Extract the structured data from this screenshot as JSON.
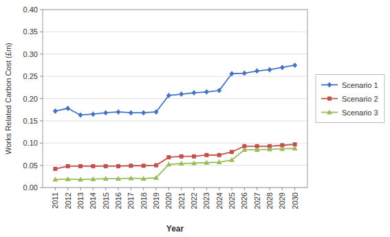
{
  "chart_data": {
    "type": "line",
    "xlabel": "Year",
    "ylabel": "Works Related Carbon Cost (£m)",
    "x": [
      2011,
      2012,
      2013,
      2014,
      2015,
      2016,
      2017,
      2018,
      2019,
      2020,
      2021,
      2022,
      2023,
      2024,
      2025,
      2026,
      2027,
      2028,
      2029,
      2030
    ],
    "xlim": [
      2010,
      2031
    ],
    "xticks": [
      2011,
      2012,
      2013,
      2014,
      2015,
      2016,
      2017,
      2018,
      2019,
      2020,
      2021,
      2022,
      2023,
      2024,
      2025,
      2026,
      2027,
      2028,
      2029,
      2030
    ],
    "ylim": [
      0.0,
      0.4
    ],
    "yticks": [
      {
        "value": 0.0,
        "label": "0.00"
      },
      0.05,
      {
        "value": 0.1,
        "label": "0.10"
      },
      0.15,
      {
        "value": 0.2,
        "label": "0.20"
      },
      0.25,
      {
        "value": 0.3,
        "label": "0.30"
      },
      0.35,
      {
        "value": 0.4,
        "label": "0.40"
      }
    ],
    "grid": true,
    "legend": "right",
    "series": [
      {
        "name": "Scenario 1",
        "color": "#4472C4",
        "marker": "diamond",
        "values": [
          0.172,
          0.178,
          0.163,
          0.165,
          0.168,
          0.17,
          0.168,
          0.168,
          0.17,
          0.207,
          0.21,
          0.213,
          0.215,
          0.218,
          0.256,
          0.257,
          0.262,
          0.265,
          0.27,
          0.275
        ]
      },
      {
        "name": "Scenario 2",
        "color": "#C0504D",
        "marker": "square",
        "values": [
          0.042,
          0.048,
          0.048,
          0.048,
          0.048,
          0.048,
          0.049,
          0.049,
          0.05,
          0.068,
          0.07,
          0.07,
          0.073,
          0.073,
          0.08,
          0.093,
          0.093,
          0.093,
          0.095,
          0.097
        ]
      },
      {
        "name": "Scenario 3",
        "color": "#9BBB59",
        "marker": "triangle",
        "values": [
          0.018,
          0.019,
          0.018,
          0.019,
          0.02,
          0.02,
          0.021,
          0.02,
          0.022,
          0.052,
          0.054,
          0.055,
          0.056,
          0.057,
          0.062,
          0.085,
          0.085,
          0.086,
          0.087,
          0.088
        ]
      }
    ]
  }
}
